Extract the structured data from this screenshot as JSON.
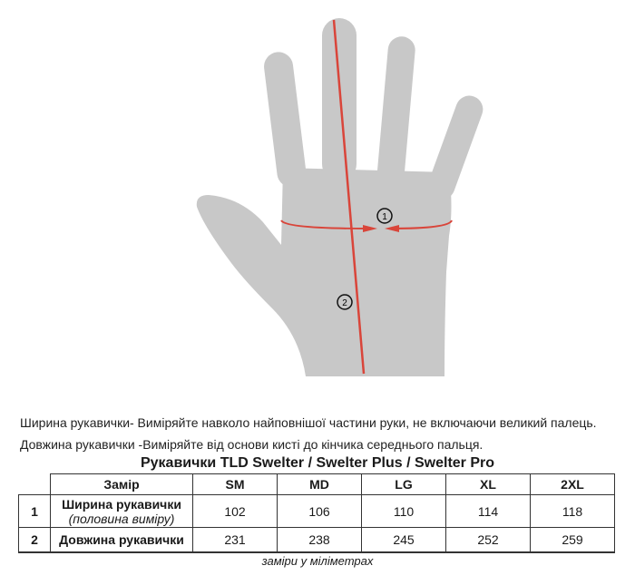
{
  "diagram": {
    "markers": [
      "1",
      "2"
    ],
    "colors": {
      "hand": "#c8c8c8",
      "measure_line": "#d9453a"
    }
  },
  "notes": [
    "Ширина рукавички- Виміряйте навколо найповнішої частини руки, не включаючи великий палець.",
    "Довжина рукавички -Виміряйте від основи кисті до кінчика середнього пальця."
  ],
  "table": {
    "title": "Рукавички TLD Swelter / Swelter Plus / Swelter Pro",
    "header": {
      "label": "Замір",
      "sizes": [
        "SM",
        "MD",
        "LG",
        "XL",
        "2XL"
      ]
    },
    "rows": [
      {
        "num": "1",
        "label": "Ширина рукавички",
        "sublabel": "(половина виміру)",
        "values": [
          "102",
          "106",
          "110",
          "114",
          "118"
        ]
      },
      {
        "num": "2",
        "label": "Довжина рукавички",
        "values": [
          "231",
          "238",
          "245",
          "252",
          "259"
        ]
      }
    ],
    "unit_note": "заміри у міліметрах"
  }
}
